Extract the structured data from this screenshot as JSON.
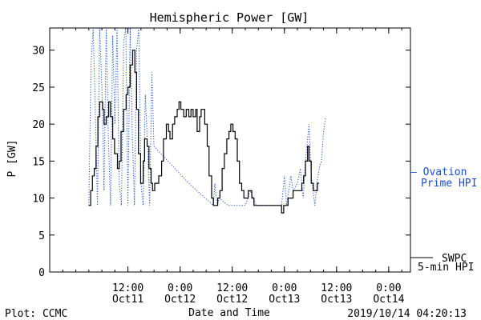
{
  "chart_data": {
    "type": "line",
    "title": "Hemispheric Power [GW]",
    "xlabel": "Date and Time",
    "ylabel": "P [GW]",
    "ylim": [
      0,
      33
    ],
    "y_ticks": [
      0,
      5,
      10,
      15,
      20,
      25,
      30
    ],
    "xlim": [
      "2019-10-10T18:00",
      "2019-10-14T05:00"
    ],
    "x_ticks": [
      {
        "x": "2019-10-11T12:00",
        "time": "12:00",
        "date": "Oct11"
      },
      {
        "x": "2019-10-12T00:00",
        "time": "0:00",
        "date": "Oct12"
      },
      {
        "x": "2019-10-12T12:00",
        "time": "12:00",
        "date": "Oct12"
      },
      {
        "x": "2019-10-13T00:00",
        "time": "0:00",
        "date": "Oct13"
      },
      {
        "x": "2019-10-13T12:00",
        "time": "12:00",
        "date": "Oct13"
      },
      {
        "x": "2019-10-14T00:00",
        "time": "0:00",
        "date": "Oct14"
      }
    ],
    "grid": false,
    "series": [
      {
        "name": "SWPC 5-min HPI",
        "color": "#000000",
        "style": "solid",
        "points": [
          [
            "2019-10-11T03:00",
            9
          ],
          [
            "2019-10-11T03:25",
            11
          ],
          [
            "2019-10-11T03:50",
            13
          ],
          [
            "2019-10-11T04:15",
            14
          ],
          [
            "2019-10-11T04:40",
            17
          ],
          [
            "2019-10-11T05:05",
            21
          ],
          [
            "2019-10-11T05:30",
            23
          ],
          [
            "2019-10-11T06:10",
            22
          ],
          [
            "2019-10-11T06:30",
            20
          ],
          [
            "2019-10-11T07:00",
            21
          ],
          [
            "2019-10-11T07:35",
            23
          ],
          [
            "2019-10-11T08:00",
            21
          ],
          [
            "2019-10-11T08:30",
            18
          ],
          [
            "2019-10-11T08:55",
            16
          ],
          [
            "2019-10-11T09:35",
            14
          ],
          [
            "2019-10-11T10:00",
            15
          ],
          [
            "2019-10-11T10:25",
            19
          ],
          [
            "2019-10-11T11:00",
            22
          ],
          [
            "2019-10-11T11:35",
            24
          ],
          [
            "2019-10-11T12:00",
            25
          ],
          [
            "2019-10-11T12:30",
            28
          ],
          [
            "2019-10-11T13:05",
            30
          ],
          [
            "2019-10-11T13:35",
            27
          ],
          [
            "2019-10-11T14:00",
            22
          ],
          [
            "2019-10-11T14:25",
            16
          ],
          [
            "2019-10-11T14:55",
            12
          ],
          [
            "2019-10-11T15:30",
            15
          ],
          [
            "2019-10-11T15:50",
            18
          ],
          [
            "2019-10-11T16:25",
            17
          ],
          [
            "2019-10-11T16:50",
            14
          ],
          [
            "2019-10-11T17:20",
            12
          ],
          [
            "2019-10-11T17:40",
            11
          ],
          [
            "2019-10-11T18:10",
            12
          ],
          [
            "2019-10-11T18:40",
            12
          ],
          [
            "2019-10-11T19:05",
            13
          ],
          [
            "2019-10-11T19:45",
            15
          ],
          [
            "2019-10-11T20:10",
            18
          ],
          [
            "2019-10-11T20:50",
            20
          ],
          [
            "2019-10-11T21:20",
            19
          ],
          [
            "2019-10-11T21:40",
            18
          ],
          [
            "2019-10-11T22:15",
            20
          ],
          [
            "2019-10-11T22:45",
            21
          ],
          [
            "2019-10-11T23:20",
            22
          ],
          [
            "2019-10-11T23:45",
            23
          ],
          [
            "2019-10-12T00:10",
            22
          ],
          [
            "2019-10-12T00:50",
            21
          ],
          [
            "2019-10-12T01:25",
            22
          ],
          [
            "2019-10-12T02:00",
            21
          ],
          [
            "2019-10-12T02:30",
            22
          ],
          [
            "2019-10-12T03:00",
            21
          ],
          [
            "2019-10-12T03:35",
            22
          ],
          [
            "2019-10-12T03:55",
            19
          ],
          [
            "2019-10-12T04:30",
            21
          ],
          [
            "2019-10-12T04:50",
            22
          ],
          [
            "2019-10-12T05:15",
            22
          ],
          [
            "2019-10-12T05:40",
            20
          ],
          [
            "2019-10-12T06:15",
            17
          ],
          [
            "2019-10-12T06:40",
            13
          ],
          [
            "2019-10-12T07:15",
            10
          ],
          [
            "2019-10-12T07:40",
            9
          ],
          [
            "2019-10-12T08:10",
            9
          ],
          [
            "2019-10-12T08:40",
            10
          ],
          [
            "2019-10-12T09:10",
            11
          ],
          [
            "2019-10-12T09:40",
            14
          ],
          [
            "2019-10-12T10:10",
            16
          ],
          [
            "2019-10-12T10:45",
            18
          ],
          [
            "2019-10-12T11:15",
            19
          ],
          [
            "2019-10-12T11:40",
            20
          ],
          [
            "2019-10-12T12:10",
            19
          ],
          [
            "2019-10-12T12:40",
            18
          ],
          [
            "2019-10-12T13:10",
            15
          ],
          [
            "2019-10-12T13:40",
            12
          ],
          [
            "2019-10-12T14:10",
            11
          ],
          [
            "2019-10-12T14:40",
            10
          ],
          [
            "2019-10-12T15:10",
            10
          ],
          [
            "2019-10-12T15:40",
            11
          ],
          [
            "2019-10-12T16:00",
            11
          ],
          [
            "2019-10-12T16:30",
            10
          ],
          [
            "2019-10-12T17:00",
            9
          ],
          [
            "2019-10-12T18:00",
            9
          ],
          [
            "2019-10-12T20:00",
            9
          ],
          [
            "2019-10-12T22:00",
            9
          ],
          [
            "2019-10-12T23:00",
            9
          ],
          [
            "2019-10-12T23:20",
            8
          ],
          [
            "2019-10-12T23:50",
            9
          ],
          [
            "2019-10-13T00:20",
            9
          ],
          [
            "2019-10-13T00:50",
            10
          ],
          [
            "2019-10-13T01:30",
            10
          ],
          [
            "2019-10-13T02:00",
            11
          ],
          [
            "2019-10-13T03:00",
            11
          ],
          [
            "2019-10-13T04:00",
            12
          ],
          [
            "2019-10-13T04:25",
            13
          ],
          [
            "2019-10-13T04:50",
            15
          ],
          [
            "2019-10-13T05:20",
            17
          ],
          [
            "2019-10-13T05:40",
            15
          ],
          [
            "2019-10-13T06:10",
            12
          ],
          [
            "2019-10-13T06:40",
            11
          ],
          [
            "2019-10-13T07:10",
            11
          ],
          [
            "2019-10-13T07:35",
            12
          ],
          [
            "2019-10-13T08:00",
            12
          ]
        ]
      },
      {
        "name": "Ovation Prime HPI",
        "color": "#1a4fd6",
        "style": "dotted",
        "points": [
          [
            "2019-10-11T03:00",
            9
          ],
          [
            "2019-10-11T03:30",
            28
          ],
          [
            "2019-10-11T04:00",
            33
          ],
          [
            "2019-10-11T04:30",
            22
          ],
          [
            "2019-10-11T05:00",
            9
          ],
          [
            "2019-10-11T05:30",
            33
          ],
          [
            "2019-10-11T06:00",
            25
          ],
          [
            "2019-10-11T06:30",
            11
          ],
          [
            "2019-10-11T07:00",
            33
          ],
          [
            "2019-10-11T07:30",
            18
          ],
          [
            "2019-10-11T08:00",
            9
          ],
          [
            "2019-10-11T08:30",
            32
          ],
          [
            "2019-10-11T09:00",
            20
          ],
          [
            "2019-10-11T09:30",
            33
          ],
          [
            "2019-10-11T10:00",
            12
          ],
          [
            "2019-10-11T10:30",
            9
          ],
          [
            "2019-10-11T11:00",
            31
          ],
          [
            "2019-10-11T11:30",
            33
          ],
          [
            "2019-10-11T12:00",
            9
          ],
          [
            "2019-10-11T12:30",
            33
          ],
          [
            "2019-10-11T13:00",
            19
          ],
          [
            "2019-10-11T13:30",
            9
          ],
          [
            "2019-10-11T14:00",
            30
          ],
          [
            "2019-10-11T14:30",
            33
          ],
          [
            "2019-10-11T15:00",
            12
          ],
          [
            "2019-10-11T15:30",
            9
          ],
          [
            "2019-10-11T16:00",
            24
          ],
          [
            "2019-10-11T16:30",
            17
          ],
          [
            "2019-10-11T17:00",
            9
          ],
          [
            "2019-10-11T17:30",
            27
          ],
          [
            "2019-10-11T18:00",
            17
          ],
          [
            "2019-10-12T02:00",
            12
          ],
          [
            "2019-10-12T07:40",
            9
          ],
          [
            "2019-10-12T08:00",
            12
          ],
          [
            "2019-10-12T08:30",
            9
          ],
          [
            "2019-10-12T09:00",
            10
          ],
          [
            "2019-10-12T11:00",
            9
          ],
          [
            "2019-10-12T15:00",
            9
          ],
          [
            "2019-10-12T16:10",
            11
          ],
          [
            "2019-10-12T17:30",
            9
          ],
          [
            "2019-10-12T23:20",
            9
          ],
          [
            "2019-10-13T00:00",
            13
          ],
          [
            "2019-10-13T00:30",
            9
          ],
          [
            "2019-10-13T01:30",
            13
          ],
          [
            "2019-10-13T02:00",
            11
          ],
          [
            "2019-10-13T03:00",
            12
          ],
          [
            "2019-10-13T03:40",
            14
          ],
          [
            "2019-10-13T04:20",
            10
          ],
          [
            "2019-10-13T04:50",
            15
          ],
          [
            "2019-10-13T05:40",
            20
          ],
          [
            "2019-10-13T06:10",
            13
          ],
          [
            "2019-10-13T07:00",
            9
          ],
          [
            "2019-10-13T07:30",
            12
          ],
          [
            "2019-10-13T08:00",
            14
          ],
          [
            "2019-10-13T08:30",
            15
          ],
          [
            "2019-10-13T09:00",
            19
          ],
          [
            "2019-10-13T09:30",
            21
          ]
        ]
      }
    ],
    "legend": [
      {
        "series": "Ovation Prime HPI",
        "lines": [
          "— Ovation",
          "Prime HPI"
        ],
        "color": "#1a4fd6"
      },
      {
        "series": "SWPC 5-min HPI",
        "lines": [
          "SWPC",
          "5-min HPI"
        ],
        "color": "#000000"
      }
    ],
    "legend_placement": "right"
  },
  "footer": {
    "left": "Plot: CCMC",
    "right": "2019/10/14 04:20:13"
  }
}
